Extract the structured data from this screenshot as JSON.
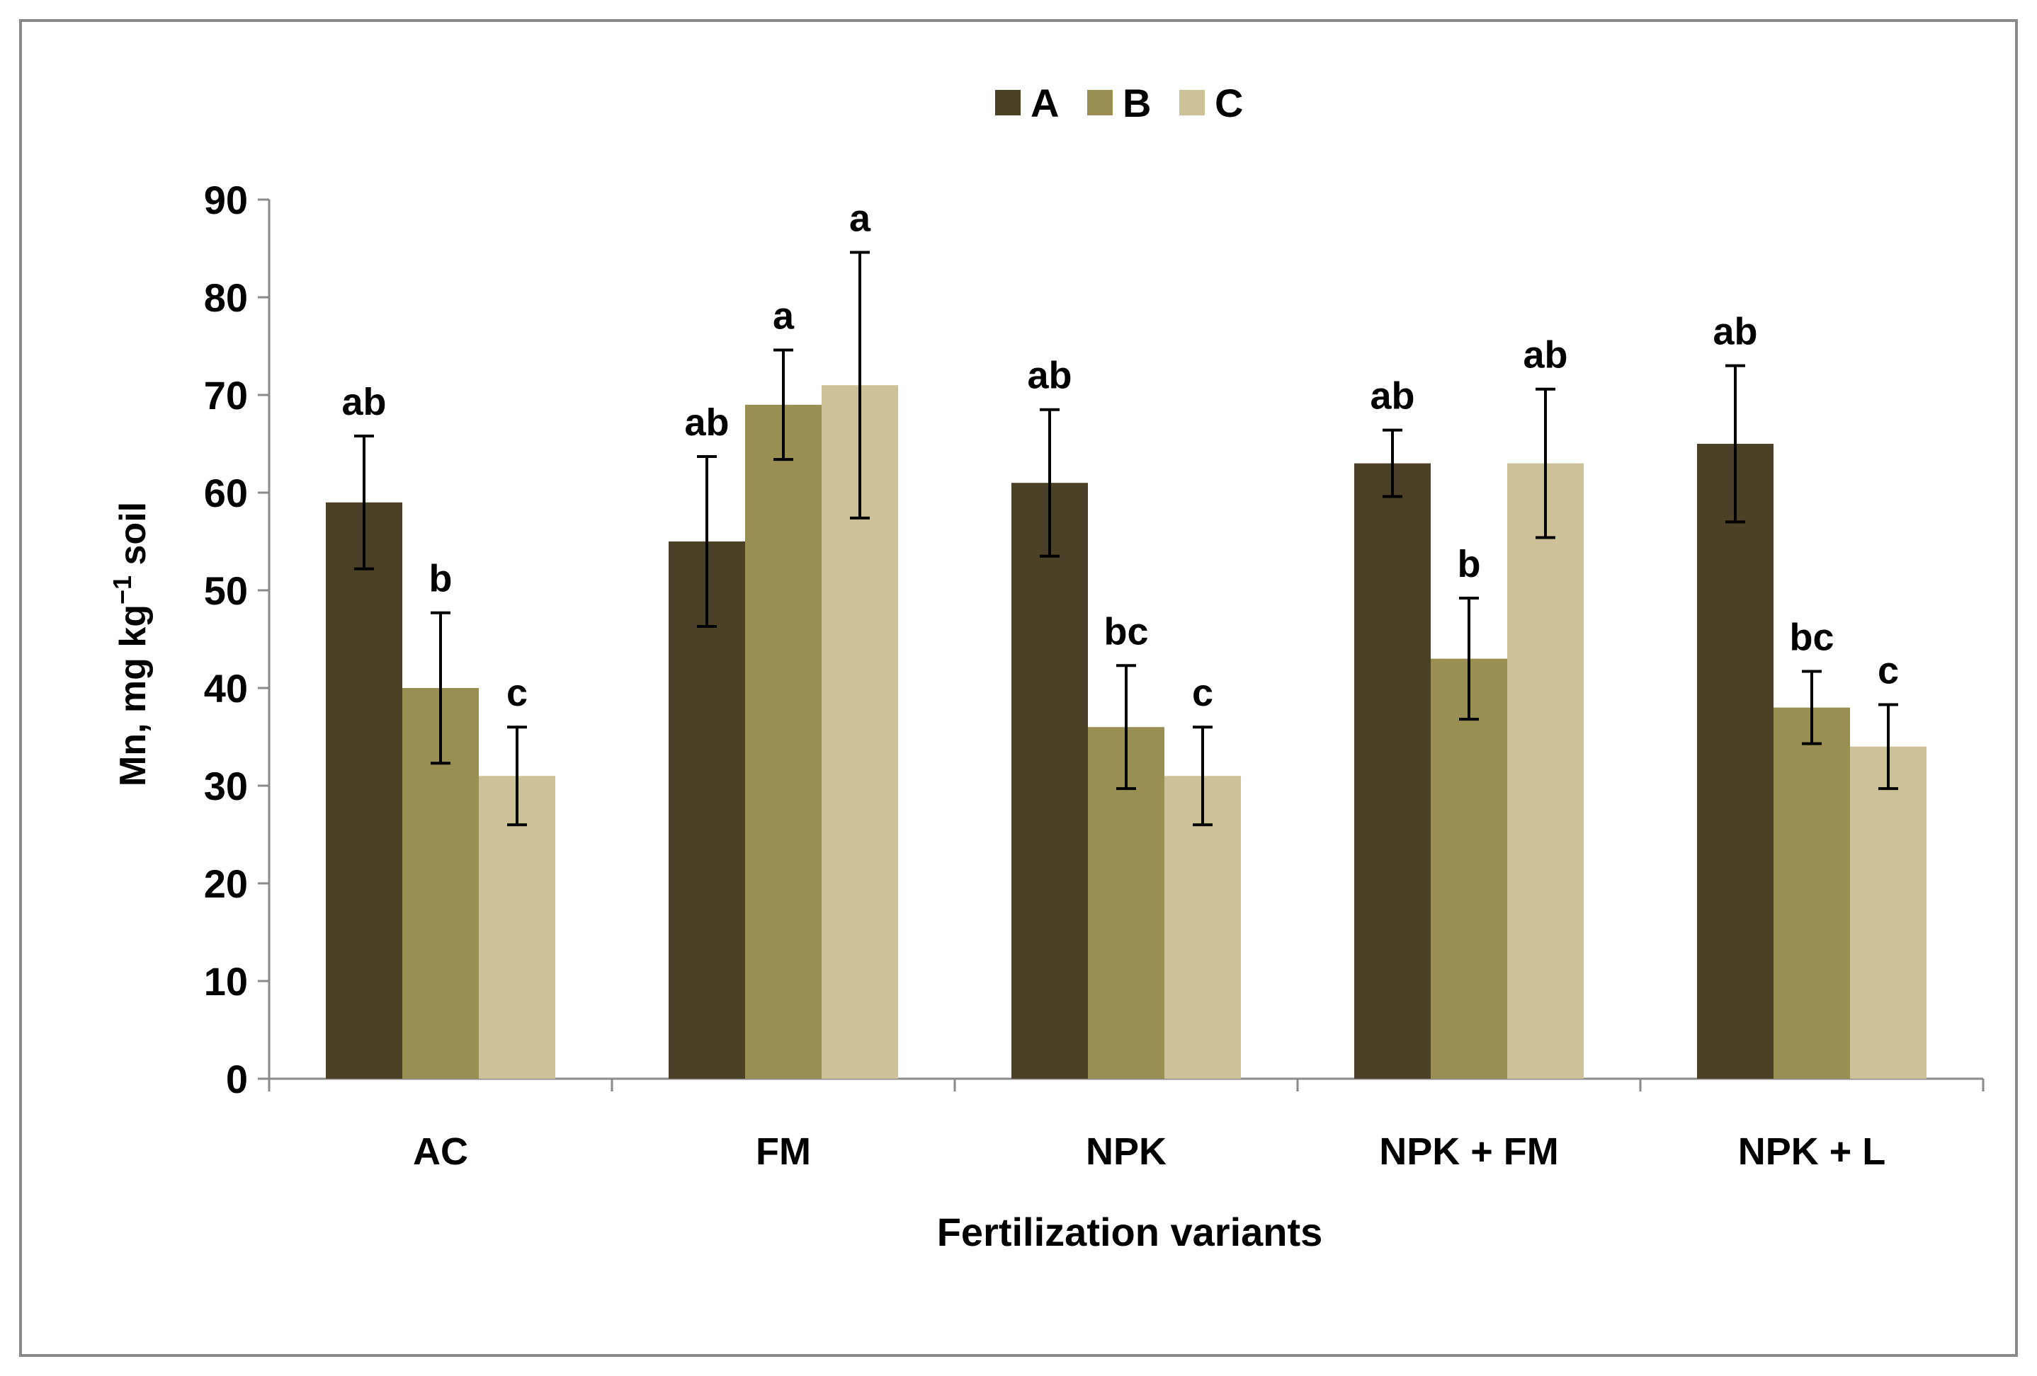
{
  "chart_data": {
    "type": "bar",
    "title": "",
    "xlabel": "Fertilization variants",
    "ylabel": {
      "prefix": "Mn, mg kg",
      "superscript": "−1",
      "suffix": " soil"
    },
    "ylim": [
      0,
      90
    ],
    "yticks": [
      "0",
      "10",
      "20",
      "30",
      "40",
      "50",
      "60",
      "70",
      "80",
      "90"
    ],
    "grid": false,
    "legend_position": "top-center",
    "categories": [
      "AC",
      "FM",
      "NPK",
      "NPK + FM",
      "NPK + L"
    ],
    "series": [
      {
        "name": "A",
        "color": "#4a4126",
        "values": [
          59,
          55,
          61,
          63,
          65
        ],
        "errors": [
          6.8,
          8.7,
          7.5,
          3.4,
          8.0
        ],
        "letters": [
          "ab",
          "ab",
          "ab",
          "ab",
          "ab"
        ]
      },
      {
        "name": "B",
        "color": "#9a8f52",
        "values": [
          40,
          69,
          36,
          43,
          38
        ],
        "errors": [
          7.7,
          5.6,
          6.3,
          6.2,
          3.7
        ],
        "letters": [
          "b",
          "a",
          "bc",
          "b",
          "bc"
        ]
      },
      {
        "name": "C",
        "color": "#cdc198",
        "values": [
          31,
          71,
          31,
          63,
          34
        ],
        "errors": [
          5.0,
          13.6,
          5.0,
          7.6,
          4.3
        ],
        "letters": [
          "c",
          "a",
          "c",
          "ab",
          "c"
        ]
      }
    ]
  }
}
